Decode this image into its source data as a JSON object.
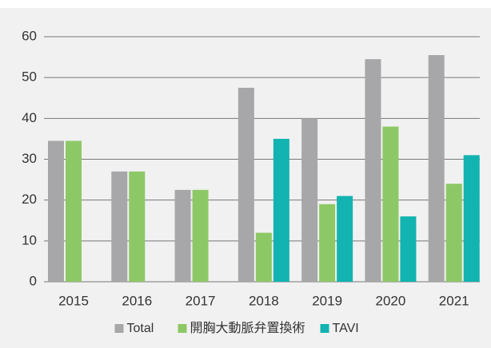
{
  "chart_data": {
    "type": "bar",
    "categories": [
      "2015",
      "2016",
      "2017",
      "2018",
      "2019",
      "2020",
      "2021"
    ],
    "series": [
      {
        "name": "Total",
        "color": "#a7a7a9",
        "values": [
          34.5,
          27,
          22.5,
          47.5,
          40,
          54.5,
          55.5
        ]
      },
      {
        "name": "開胸大動脈弁置換術",
        "color": "#8dc866",
        "values": [
          34.5,
          27,
          22.5,
          12,
          19,
          38,
          24
        ]
      },
      {
        "name": "TAVI",
        "color": "#12b3b0",
        "values": [
          null,
          null,
          null,
          35,
          21,
          16,
          31
        ]
      }
    ],
    "ylim": [
      0,
      60
    ],
    "yticks": [
      0,
      10,
      20,
      30,
      40,
      50,
      60
    ],
    "grid": true,
    "legend": "bottom"
  }
}
